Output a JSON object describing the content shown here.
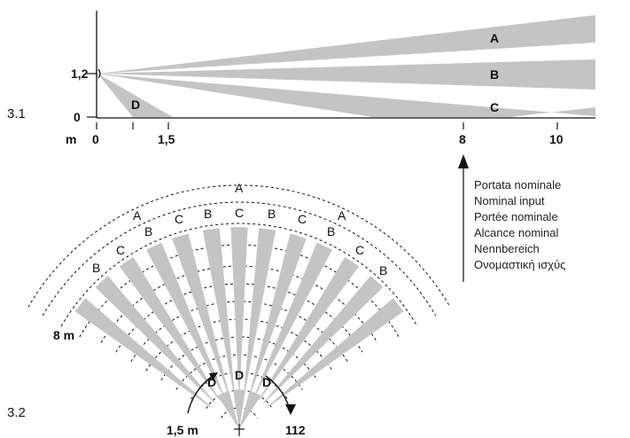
{
  "figure_3_1": {
    "label": "3.1",
    "unit_label": "m",
    "x_ticks": [
      "0",
      "1,5",
      "8",
      "10"
    ],
    "y_ticks": [
      "1,2",
      "0"
    ],
    "beams": [
      {
        "label": "A",
        "kind": "long-range"
      },
      {
        "label": "B",
        "kind": "long-range"
      },
      {
        "label": "C",
        "kind": "long-range"
      },
      {
        "label": "D",
        "kind": "short-range"
      }
    ],
    "beam_color": "#c4c4c4",
    "nominal_range_m": 8
  },
  "legend": {
    "lines": [
      "Portata nominale",
      "Nominal input",
      "Portée nominale",
      "Alcance nominal",
      "Nennbereich",
      "Ονομαστική ισχύς"
    ]
  },
  "figure_3_2": {
    "label": "3.2",
    "outer_label": "8 m",
    "inner_label": "1,5 m",
    "angle_label": "112",
    "arc_labels": [
      "A",
      "A",
      "A",
      "B",
      "B",
      "B",
      "B",
      "B",
      "B",
      "C",
      "C",
      "C",
      "C",
      "C",
      "C",
      "D",
      "D",
      "D"
    ]
  }
}
